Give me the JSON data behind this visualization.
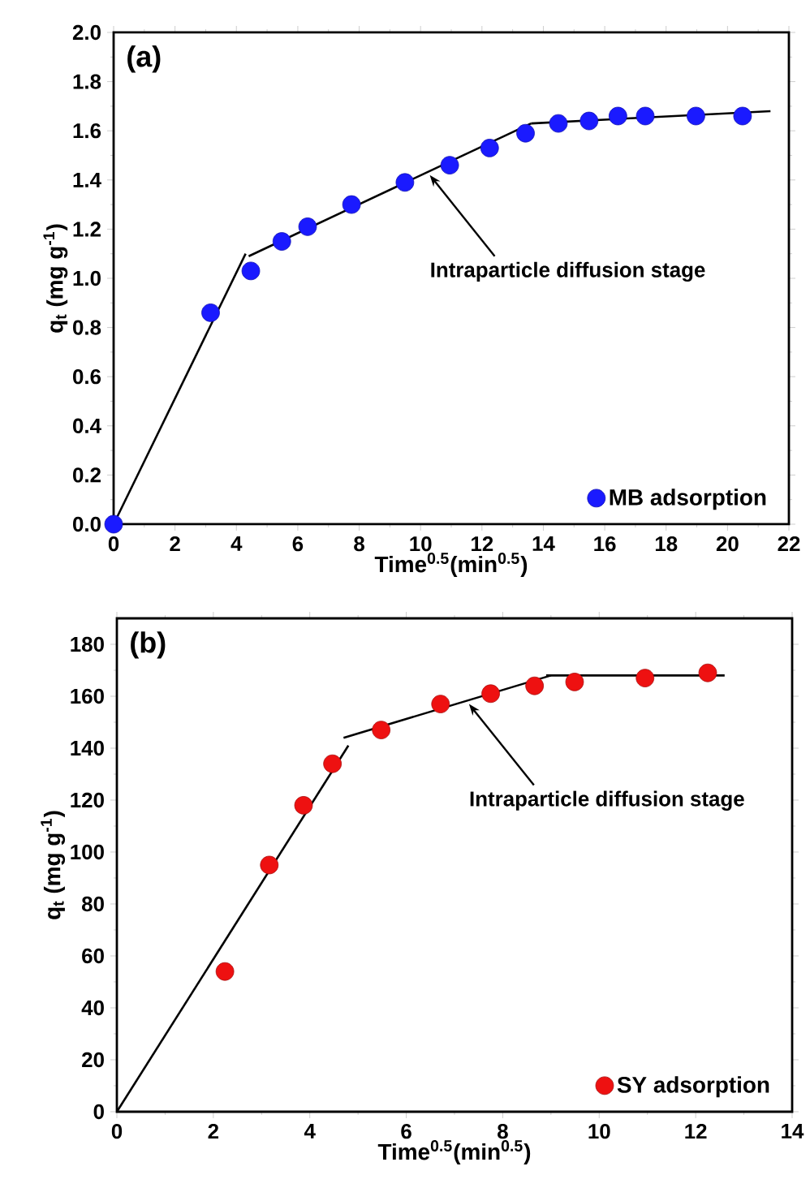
{
  "chart_data": [
    {
      "type": "scatter",
      "xlabel": "Time$^{0.5}$(min$^{0.5}$)",
      "ylabel": "q$_{t}$ (mg g$^{-1}$)",
      "xlim": [
        0,
        22
      ],
      "ylim": [
        0,
        2.0
      ],
      "xticks": [
        0,
        2,
        4,
        6,
        8,
        10,
        12,
        14,
        16,
        18,
        20,
        22
      ],
      "yticks": [
        {
          "value": 0,
          "label": "0.0"
        },
        {
          "value": 0.2,
          "label": "0.2"
        },
        {
          "value": 0.4,
          "label": "0.4"
        },
        {
          "value": 0.6,
          "label": "0.6"
        },
        {
          "value": 0.8,
          "label": "0.8"
        },
        {
          "value": 1.0,
          "label": "1.0"
        },
        {
          "value": 1.2,
          "label": "1.2"
        },
        {
          "value": 1.4,
          "label": "1.4"
        },
        {
          "value": 1.6,
          "label": "1.6"
        },
        {
          "value": 1.8,
          "label": "1.8"
        },
        {
          "value": 2.0,
          "label": "2.0"
        }
      ],
      "legend": "bottom right",
      "grid": false,
      "annotations": [
        "(a)",
        {
          "text": "Intraparticle diffusion stage",
          "x": 10.3,
          "y": 1.42
        }
      ],
      "series": [
        {
          "name": "MB adsorption",
          "color": "#1a1aff",
          "marker": "circle",
          "x": [
            0,
            3.16,
            4.47,
            5.48,
            6.32,
            7.75,
            9.49,
            10.95,
            12.25,
            13.42,
            14.49,
            15.49,
            16.43,
            17.32,
            18.97,
            20.49
          ],
          "values": [
            0,
            0.86,
            1.03,
            1.15,
            1.21,
            1.3,
            1.39,
            1.46,
            1.53,
            1.59,
            1.63,
            1.64,
            1.66,
            1.66,
            1.66,
            1.66
          ]
        },
        {
          "type": "line",
          "color": "#000000",
          "x": [
            0,
            4.3
          ],
          "values": [
            0,
            1.1
          ]
        },
        {
          "type": "line",
          "color": "#000000",
          "x": [
            4.4,
            13.6
          ],
          "values": [
            1.09,
            1.63
          ]
        },
        {
          "type": "line",
          "color": "#000000",
          "x": [
            13.6,
            21.4
          ],
          "values": [
            1.63,
            1.68
          ]
        }
      ]
    },
    {
      "type": "scatter",
      "xlabel": "Time$^{0.5}$(min$^{0.5}$)",
      "ylabel": "q$_{t}$ (mg g$^{-1}$)",
      "xlim": [
        0,
        14
      ],
      "ylim": [
        0,
        190
      ],
      "xticks": [
        0,
        2,
        4,
        6,
        8,
        10,
        12,
        14
      ],
      "yticks": [
        0,
        20,
        40,
        60,
        80,
        100,
        120,
        140,
        160,
        180
      ],
      "legend": "bottom right",
      "grid": false,
      "annotations": [
        "(b)",
        {
          "text": "Intraparticle diffusion stage",
          "x": 7.3,
          "y": 157
        }
      ],
      "series": [
        {
          "name": "SY adsorption",
          "color": "#ee1111",
          "marker": "circle",
          "x": [
            2.24,
            3.16,
            3.87,
            4.47,
            5.48,
            6.71,
            7.75,
            8.66,
            9.49,
            10.95,
            12.25
          ],
          "values": [
            54,
            95,
            118,
            134,
            147,
            157,
            161,
            164,
            165.5,
            167,
            169
          ]
        },
        {
          "type": "line",
          "color": "#000000",
          "x": [
            0,
            4.8
          ],
          "values": [
            0,
            141
          ]
        },
        {
          "type": "line",
          "color": "#000000",
          "x": [
            4.7,
            9.0
          ],
          "values": [
            144,
            168
          ]
        },
        {
          "type": "line",
          "color": "#000000",
          "x": [
            8.9,
            12.6
          ],
          "values": [
            168,
            168
          ]
        }
      ]
    }
  ]
}
